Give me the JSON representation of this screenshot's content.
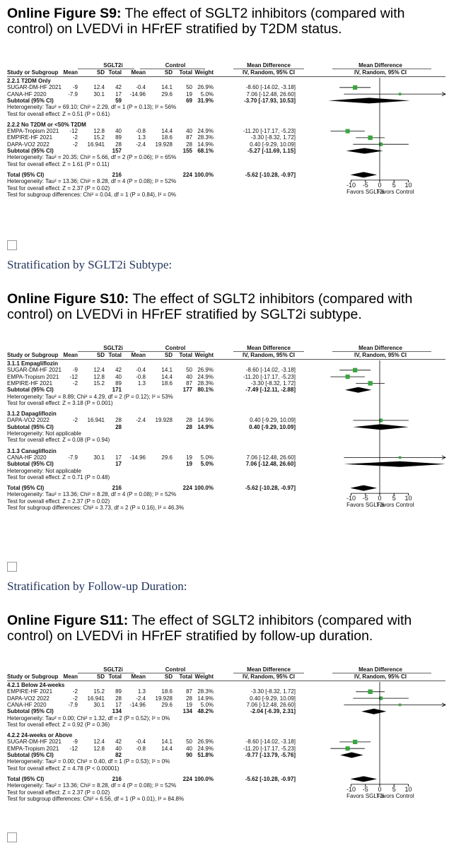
{
  "figures": [
    {
      "title_bold": "Online Figure S9:",
      "title_rest": " The effect of SGLT2 inhibitors (compared with control) on LVEDVi in HFrEF stratified by T2DM status.",
      "table_header": {
        "group_sglt2i": "SGLT2i",
        "group_control": "Control",
        "study": "Study or Subgroup",
        "mean1": "Mean",
        "sd1": "SD",
        "total1": "Total",
        "mean2": "Mean",
        "sd2": "SD",
        "total2": "Total",
        "weight": "Weight",
        "md_title": "Mean Difference",
        "md_sub": "IV, Random, 95% CI",
        "plot_title": "Mean Difference",
        "plot_sub": "IV, Random, 95% CI"
      },
      "subgroups": [
        {
          "label": "2.2.1 T2DM Only",
          "studies": [
            {
              "name": "SUGAR-DM-HF 2021",
              "m1": "-9",
              "sd1": "12.4",
              "n1": "42",
              "m2": "-0.4",
              "sd2": "14.1",
              "n2": "50",
              "w": "26.9%",
              "ci": "-8.60 [-14.02, -3.18]",
              "est": -8.6,
              "lo": -14.02,
              "hi": -3.18
            },
            {
              "name": "CANA-HF 2020",
              "m1": "-7.9",
              "sd1": "30.1",
              "n1": "17",
              "m2": "-14.96",
              "sd2": "29.6",
              "n2": "19",
              "w": "5.0%",
              "ci": "7.06 [-12.48, 26.60]",
              "est": 7.06,
              "lo": -12.48,
              "hi": 26.6
            }
          ],
          "subtotal": {
            "label": "Subtotal (95% CI)",
            "n1": "59",
            "n2": "69",
            "w": "31.9%",
            "ci": "-3.70 [-17.93, 10.53]",
            "est": -3.7,
            "lo": -17.93,
            "hi": 10.53
          },
          "het": "Heterogeneity: Tau² = 69.10; Chi² = 2.29, df = 1 (P = 0.13); I² = 56%",
          "test": "Test for overall effect: Z = 0.51 (P = 0.61)"
        },
        {
          "label": "2.2.2 No T2DM or <50% T2DM",
          "studies": [
            {
              "name": "EMPA-Tropism 2021",
              "m1": "-12",
              "sd1": "12.8",
              "n1": "40",
              "m2": "-0.8",
              "sd2": "14.4",
              "n2": "40",
              "w": "24.9%",
              "ci": "-11.20 [-17.17, -5.23]",
              "est": -11.2,
              "lo": -17.17,
              "hi": -5.23
            },
            {
              "name": "EMPIRE-HF 2021",
              "m1": "-2",
              "sd1": "15.2",
              "n1": "89",
              "m2": "1.3",
              "sd2": "18.6",
              "n2": "87",
              "w": "28.3%",
              "ci": "-3.30 [-8.32, 1.72]",
              "est": -3.3,
              "lo": -8.32,
              "hi": 1.72
            },
            {
              "name": "DAPA-VO2 2022",
              "m1": "-2",
              "sd1": "16.941",
              "n1": "28",
              "m2": "-2.4",
              "sd2": "19.928",
              "n2": "28",
              "w": "14.9%",
              "ci": "0.40 [-9.29, 10.09]",
              "est": 0.4,
              "lo": -9.29,
              "hi": 10.09
            }
          ],
          "subtotal": {
            "label": "Subtotal (95% CI)",
            "n1": "157",
            "n2": "155",
            "w": "68.1%",
            "ci": "-5.27 [-11.69, 1.15]",
            "est": -5.27,
            "lo": -11.69,
            "hi": 1.15
          },
          "het": "Heterogeneity: Tau² = 20.35; Chi² = 5.66, df = 2 (P = 0.06); I² = 65%",
          "test": "Test for overall effect: Z = 1.61 (P = 0.11)"
        }
      ],
      "total": {
        "label": "Total (95% CI)",
        "n1": "216",
        "n2": "224",
        "w": "100.0%",
        "ci": "-5.62 [-10.28, -0.97]",
        "est": -5.62,
        "lo": -10.28,
        "hi": -0.97
      },
      "footer": [
        "Heterogeneity: Tau² = 13.36; Chi² = 8.28, df = 4 (P = 0.08); I² = 52%",
        "Test for overall effect: Z = 2.37 (P = 0.02)",
        "Test for subgroup differences: Chi² = 0.04, df = 1 (P = 0.84), I² = 0%"
      ],
      "axis_ticks": [
        "-10",
        "-5",
        "0",
        "5",
        "10"
      ],
      "favors_left": "Favors SGLT2i",
      "favors_right": "Favors Control"
    },
    {
      "title_bold": "Online Figure S10:",
      "title_rest": " The effect of SGLT2 inhibitors (compared with control) on LVEDVi in HFrEF stratified by SGLT2i subtype.",
      "table_header": {
        "group_sglt2i": "SGLT2i",
        "group_control": "Control",
        "study": "Study or Subgroup",
        "mean1": "Mean",
        "sd1": "SD",
        "total1": "Total",
        "mean2": "Mean",
        "sd2": "SD",
        "total2": "Total",
        "weight": "Weight",
        "md_title": "Mean Difference",
        "md_sub": "IV, Random, 95% CI",
        "plot_title": "Mean Difference",
        "plot_sub": "IV, Random, 95% CI"
      },
      "subgroups": [
        {
          "label": "3.1.1 Empagliflozin",
          "studies": [
            {
              "name": "SUGAR-DM-HF 2021",
              "m1": "-9",
              "sd1": "12.4",
              "n1": "42",
              "m2": "-0.4",
              "sd2": "14.1",
              "n2": "50",
              "w": "26.9%",
              "ci": "-8.60 [-14.02, -3.18]",
              "est": -8.6,
              "lo": -14.02,
              "hi": -3.18
            },
            {
              "name": "EMPA-Tropism 2021",
              "m1": "-12",
              "sd1": "12.8",
              "n1": "40",
              "m2": "-0.8",
              "sd2": "14.4",
              "n2": "40",
              "w": "24.9%",
              "ci": "-11.20 [-17.17, -5.23]",
              "est": -11.2,
              "lo": -17.17,
              "hi": -5.23
            },
            {
              "name": "EMPIRE-HF 2021",
              "m1": "-2",
              "sd1": "15.2",
              "n1": "89",
              "m2": "1.3",
              "sd2": "18.6",
              "n2": "87",
              "w": "28.3%",
              "ci": "-3.30 [-8.32, 1.72]",
              "est": -3.3,
              "lo": -8.32,
              "hi": 1.72
            }
          ],
          "subtotal": {
            "label": "Subtotal (95% CI)",
            "n1": "171",
            "n2": "177",
            "w": "80.1%",
            "ci": "-7.49 [-12.11, -2.88]",
            "est": -7.49,
            "lo": -12.11,
            "hi": -2.88
          },
          "het": "Heterogeneity: Tau² = 8.89; Chi² = 4.29, df = 2 (P = 0.12); I² = 53%",
          "test": "Test for overall effect: Z = 3.18 (P = 0.001)"
        },
        {
          "label": "3.1.2 Dapagliflozin",
          "studies": [
            {
              "name": "DAPA-VO2 2022",
              "m1": "-2",
              "sd1": "16.941",
              "n1": "28",
              "m2": "-2.4",
              "sd2": "19.928",
              "n2": "28",
              "w": "14.9%",
              "ci": "0.40 [-9.29, 10.09]",
              "est": 0.4,
              "lo": -9.29,
              "hi": 10.09
            }
          ],
          "subtotal": {
            "label": "Subtotal (95% CI)",
            "n1": "28",
            "n2": "28",
            "w": "14.9%",
            "ci": "0.40 [-9.29, 10.09]",
            "est": 0.4,
            "lo": -9.29,
            "hi": 10.09
          },
          "het": "Heterogeneity: Not applicable",
          "test": "Test for overall effect: Z = 0.08 (P = 0.94)"
        },
        {
          "label": "3.1.3 Canagliflozin",
          "studies": [
            {
              "name": "CANA-HF 2020",
              "m1": "-7.9",
              "sd1": "30.1",
              "n1": "17",
              "m2": "-14.96",
              "sd2": "29.6",
              "n2": "19",
              "w": "5.0%",
              "ci": "7.06 [-12.48, 26.60]",
              "est": 7.06,
              "lo": -12.48,
              "hi": 26.6
            }
          ],
          "subtotal": {
            "label": "Subtotal (95% CI)",
            "n1": "17",
            "n2": "19",
            "w": "5.0%",
            "ci": "7.06 [-12.48, 26.60]",
            "est": 7.06,
            "lo": -12.48,
            "hi": 26.6
          },
          "het": "Heterogeneity: Not applicable",
          "test": "Test for overall effect: Z = 0.71 (P = 0.48)"
        }
      ],
      "total": {
        "label": "Total (95% CI)",
        "n1": "216",
        "n2": "224",
        "w": "100.0%",
        "ci": "-5.62 [-10.28, -0.97]",
        "est": -5.62,
        "lo": -10.28,
        "hi": -0.97
      },
      "footer": [
        "Heterogeneity: Tau² = 13.36; Chi² = 8.28, df = 4 (P = 0.08); I² = 52%",
        "Test for overall effect: Z = 2.37 (P = 0.02)",
        "Test for subgroup differences: Chi² = 3.73, df = 2 (P = 0.16), I² = 46.3%"
      ],
      "axis_ticks": [
        "-10",
        "-5",
        "0",
        "5",
        "10"
      ],
      "favors_left": "Favors SGLT2i",
      "favors_right": "Favors Control"
    },
    {
      "title_bold": "Online Figure S11:",
      "title_rest": " The effect of SGLT2 inhibitors (compared with control) on LVEDVi in HFrEF stratified by follow-up duration.",
      "table_header": {
        "group_sglt2i": "SGLT2i",
        "group_control": "Control",
        "study": "Study or Subgroup",
        "mean1": "Mean",
        "sd1": "SD",
        "total1": "Total",
        "mean2": "Mean",
        "sd2": "SD",
        "total2": "Total",
        "weight": "Weight",
        "md_title": "Mean Difference",
        "md_sub": "IV, Random, 95% CI",
        "plot_title": "Mean Difference",
        "plot_sub": "IV, Random, 95% CI"
      },
      "subgroups": [
        {
          "label": "4.2.1 Below 24-weeks",
          "studies": [
            {
              "name": "EMPIRE-HF 2021",
              "m1": "-2",
              "sd1": "15.2",
              "n1": "89",
              "m2": "1.3",
              "sd2": "18.6",
              "n2": "87",
              "w": "28.3%",
              "ci": "-3.30 [-8.32, 1.72]",
              "est": -3.3,
              "lo": -8.32,
              "hi": 1.72
            },
            {
              "name": "DAPA-VO2 2022",
              "m1": "-2",
              "sd1": "16.941",
              "n1": "28",
              "m2": "-2.4",
              "sd2": "19.928",
              "n2": "28",
              "w": "14.9%",
              "ci": "0.40 [-9.29, 10.09]",
              "est": 0.4,
              "lo": -9.29,
              "hi": 10.09
            },
            {
              "name": "CANA-HF 2020",
              "m1": "-7.9",
              "sd1": "30.1",
              "n1": "17",
              "m2": "-14.96",
              "sd2": "29.6",
              "n2": "19",
              "w": "5.0%",
              "ci": "7.06 [-12.48, 26.60]",
              "est": 7.06,
              "lo": -12.48,
              "hi": 26.6
            }
          ],
          "subtotal": {
            "label": "Subtotal (95% CI)",
            "n1": "134",
            "n2": "134",
            "w": "48.2%",
            "ci": "-2.04 [-6.39, 2.31]",
            "est": -2.04,
            "lo": -6.39,
            "hi": 2.31
          },
          "het": "Heterogeneity: Tau² = 0.00; Chi² = 1.32, df = 2 (P = 0.52); I² = 0%",
          "test": "Test for overall effect: Z = 0.92 (P = 0.36)"
        },
        {
          "label": "4.2.2 24-weeks or Above",
          "studies": [
            {
              "name": "SUGAR-DM-HF 2021",
              "m1": "-9",
              "sd1": "12.4",
              "n1": "42",
              "m2": "-0.4",
              "sd2": "14.1",
              "n2": "50",
              "w": "26.9%",
              "ci": "-8.60 [-14.02, -3.18]",
              "est": -8.6,
              "lo": -14.02,
              "hi": -3.18
            },
            {
              "name": "EMPA-Tropism 2021",
              "m1": "-12",
              "sd1": "12.8",
              "n1": "40",
              "m2": "-0.8",
              "sd2": "14.4",
              "n2": "40",
              "w": "24.9%",
              "ci": "-11.20 [-17.17, -5.23]",
              "est": -11.2,
              "lo": -17.17,
              "hi": -5.23
            }
          ],
          "subtotal": {
            "label": "Subtotal (95% CI)",
            "n1": "82",
            "n2": "90",
            "w": "51.8%",
            "ci": "-9.77 [-13.79, -5.76]",
            "est": -9.77,
            "lo": -13.79,
            "hi": -5.76
          },
          "het": "Heterogeneity: Tau² = 0.00; Chi² = 0.40, df = 1 (P = 0.53); I² = 0%",
          "test": "Test for overall effect: Z = 4.78 (P < 0.00001)"
        }
      ],
      "total": {
        "label": "Total (95% CI)",
        "n1": "216",
        "n2": "224",
        "w": "100.0%",
        "ci": "-5.62 [-10.28, -0.97]",
        "est": -5.62,
        "lo": -10.28,
        "hi": -0.97
      },
      "footer": [
        "Heterogeneity: Tau² = 13.36; Chi² = 8.28, df = 4 (P = 0.08); I² = 52%",
        "Test for overall effect: Z = 2.37 (P = 0.02)",
        "Test for subgroup differences: Chi² = 6.56, df = 1 (P = 0.01), I² = 84.8%"
      ],
      "axis_ticks": [
        "-10",
        "-5",
        "0",
        "5",
        "10"
      ],
      "favors_left": "Favors SGLT2i",
      "favors_right": "Favors Control"
    }
  ],
  "stratification_labels": [
    "Stratification by SGLT2i Subtype:",
    "Stratification by Follow-up Duration:"
  ],
  "colors": {
    "study_square": "#3aa640",
    "diamond": "#000000",
    "heading_serif": "#22345c"
  },
  "chart_data": [
    {
      "type": "forest",
      "x_ticks": [
        -10,
        -5,
        0,
        5,
        10
      ],
      "xlim": [
        -10,
        10
      ],
      "series": [
        {
          "values": [
            -8.6,
            7.06
          ]
        },
        {
          "values": [
            -11.2,
            -3.3,
            0.4
          ]
        }
      ]
    },
    {
      "type": "forest",
      "x_ticks": [
        -10,
        -5,
        0,
        5,
        10
      ],
      "xlim": [
        -10,
        10
      ],
      "series": [
        {
          "values": [
            -8.6,
            -11.2,
            -3.3
          ]
        },
        {
          "values": [
            0.4
          ]
        },
        {
          "values": [
            7.06
          ]
        }
      ]
    },
    {
      "type": "forest",
      "x_ticks": [
        -10,
        -5,
        0,
        5,
        10
      ],
      "xlim": [
        -10,
        10
      ],
      "series": [
        {
          "values": [
            -3.3,
            0.4,
            7.06
          ]
        },
        {
          "values": [
            -8.6,
            -11.2
          ]
        }
      ]
    }
  ]
}
